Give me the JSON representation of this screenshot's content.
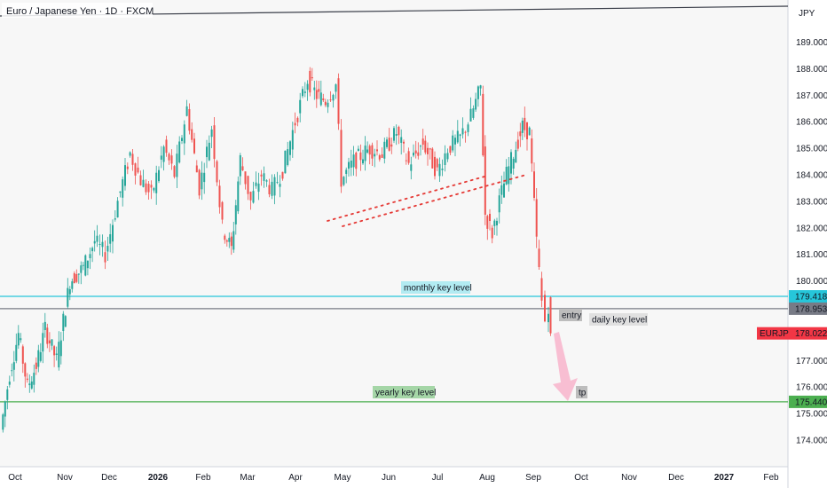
{
  "header": {
    "title": "Euro / Japanese Yen · 1D · FXCM",
    "currency": "JPY"
  },
  "chart_data": {
    "type": "candlestick",
    "title": "Euro / Japanese Yen · 1D · FXCM",
    "symbol": "EURJPY",
    "timeframe": "1D",
    "source": "FXCM",
    "currency": "JPY",
    "ylim": [
      173.3,
      189.5
    ],
    "y_ticks": [
      "174.000",
      "175.000",
      "176.000",
      "177.000",
      "178.000",
      "179.000",
      "180.000",
      "181.000",
      "182.000",
      "183.000",
      "184.000",
      "185.000",
      "186.000",
      "187.000",
      "188.000",
      "189.000"
    ],
    "x_ticks": [
      "Oct",
      "Nov",
      "Dec",
      "2026",
      "Feb",
      "Mar",
      "Apr",
      "May",
      "Jun",
      "Jul",
      "Aug",
      "Sep",
      "Oct",
      "Nov",
      "Dec",
      "2027",
      "Feb"
    ],
    "price_path": [
      {
        "t": "Oct",
        "y": 174.4
      },
      {
        "t": "Oct",
        "y": 176.5
      },
      {
        "t": "Oct",
        "y": 178.0
      },
      {
        "t": "Oct",
        "y": 176.0
      },
      {
        "t": "Oct",
        "y": 176.8
      },
      {
        "t": "Oct",
        "y": 178.2
      },
      {
        "t": "Nov",
        "y": 177.0
      },
      {
        "t": "Nov",
        "y": 180.0
      },
      {
        "t": "Nov",
        "y": 180.5
      },
      {
        "t": "Nov",
        "y": 181.5
      },
      {
        "t": "Dec",
        "y": 181.0
      },
      {
        "t": "Dec",
        "y": 183.0
      },
      {
        "t": "Dec",
        "y": 184.8
      },
      {
        "t": "Dec",
        "y": 183.8
      },
      {
        "t": "2026",
        "y": 183.2
      },
      {
        "t": "2026",
        "y": 185.0
      },
      {
        "t": "2026",
        "y": 184.0
      },
      {
        "t": "Feb",
        "y": 186.5
      },
      {
        "t": "Feb",
        "y": 183.5
      },
      {
        "t": "Feb",
        "y": 185.8
      },
      {
        "t": "Feb",
        "y": 182.0
      },
      {
        "t": "Mar",
        "y": 181.2
      },
      {
        "t": "Mar",
        "y": 184.6
      },
      {
        "t": "Mar",
        "y": 183.0
      },
      {
        "t": "Mar",
        "y": 184.0
      },
      {
        "t": "Mar",
        "y": 183.4
      },
      {
        "t": "Apr",
        "y": 184.2
      },
      {
        "t": "Apr",
        "y": 186.0
      },
      {
        "t": "Apr",
        "y": 187.6
      },
      {
        "t": "Apr",
        "y": 187.0
      },
      {
        "t": "Apr",
        "y": 186.8
      },
      {
        "t": "May",
        "y": 187.4
      },
      {
        "t": "May",
        "y": 183.8
      },
      {
        "t": "May",
        "y": 184.5
      },
      {
        "t": "May",
        "y": 185.0
      },
      {
        "t": "Jun",
        "y": 184.8
      },
      {
        "t": "Jun",
        "y": 185.6
      },
      {
        "t": "Jun",
        "y": 184.4
      },
      {
        "t": "Jun",
        "y": 185.2
      },
      {
        "t": "Jul",
        "y": 184.1
      },
      {
        "t": "Jul",
        "y": 185.0
      },
      {
        "t": "Jul",
        "y": 185.4
      },
      {
        "t": "Jul",
        "y": 186.2
      },
      {
        "t": "Aug",
        "y": 187.3
      },
      {
        "t": "Aug",
        "y": 182.5
      },
      {
        "t": "Aug",
        "y": 181.8
      },
      {
        "t": "Aug",
        "y": 183.0
      },
      {
        "t": "Aug",
        "y": 184.0
      },
      {
        "t": "Aug",
        "y": 184.8
      },
      {
        "t": "Sep",
        "y": 185.8
      },
      {
        "t": "Sep",
        "y": 185.6
      },
      {
        "t": "Sep",
        "y": 181.5
      },
      {
        "t": "Sep",
        "y": 179.2
      },
      {
        "t": "Sep",
        "y": 178.5
      },
      {
        "t": "Sep",
        "y": 179.1
      },
      {
        "t": "Sep",
        "y": 178.022
      }
    ],
    "horizontal_levels": [
      {
        "label": "monthly key level",
        "value": 179.418,
        "price_label": "179.418",
        "color": "#26c6da"
      },
      {
        "label": "daily key level",
        "value": 178.953,
        "price_label": "178.953",
        "color": "#787b86"
      },
      {
        "label": "yearly key level",
        "value": 175.44,
        "price_label": "175.440",
        "color": "#4caf50"
      }
    ],
    "current_price": {
      "symbol": "EURJPY",
      "value": 178.022,
      "price_label": "178.022",
      "color": "#f23645"
    },
    "annotations": [
      {
        "text": "entry"
      },
      {
        "text": "tp"
      }
    ],
    "colors": {
      "up": "#26a69a",
      "down": "#ef5350",
      "background": "#f7f7f7"
    }
  }
}
